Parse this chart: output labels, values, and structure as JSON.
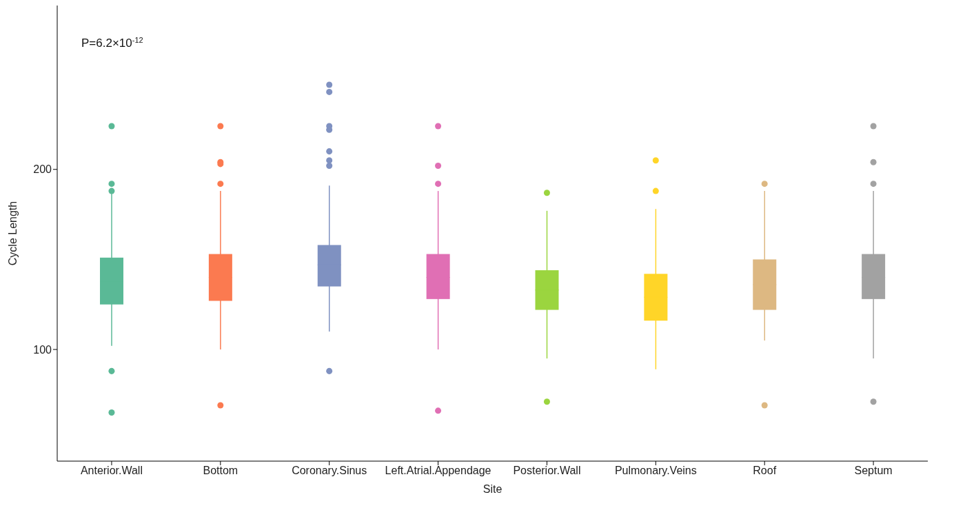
{
  "chart_data": {
    "type": "box",
    "xlabel": "Site",
    "ylabel": "Cycle Length",
    "annotations": [
      "P=6.2×10$^{-12}$"
    ],
    "categories": [
      "Anterior.Wall",
      "Bottom",
      "Coronary.Sinus",
      "Left.Atrial.Appendage",
      "Posterior.Wall",
      "Pulmonary.Veins",
      "Roof",
      "Septum"
    ],
    "colors": [
      "#5ab996",
      "#fb7a50",
      "#7f91c1",
      "#e06fb4",
      "#9bd53f",
      "#ffd528",
      "#ddb882",
      "#a2a2a2"
    ],
    "boxes": [
      {
        "low": 102,
        "q1": 125,
        "median": 138,
        "q3": 151,
        "high": 188,
        "outliers": [
          224,
          192,
          188,
          88,
          65
        ]
      },
      {
        "low": 100,
        "q1": 127,
        "median": 140,
        "q3": 153,
        "high": 188,
        "outliers": [
          224,
          204,
          203,
          192,
          69
        ]
      },
      {
        "low": 110,
        "q1": 135,
        "median": 147,
        "q3": 158,
        "high": 191,
        "outliers": [
          247,
          243,
          224,
          222,
          210,
          205,
          202,
          88
        ]
      },
      {
        "low": 100,
        "q1": 128,
        "median": 140,
        "q3": 153,
        "high": 188,
        "outliers": [
          224,
          202,
          192,
          66
        ]
      },
      {
        "low": 95,
        "q1": 122,
        "median": 133,
        "q3": 144,
        "high": 177,
        "outliers": [
          187,
          71
        ]
      },
      {
        "low": 89,
        "q1": 116,
        "median": 129,
        "q3": 142,
        "high": 178,
        "outliers": [
          205,
          188
        ]
      },
      {
        "low": 105,
        "q1": 122,
        "median": 136,
        "q3": 150,
        "high": 188,
        "outliers": [
          192,
          69
        ]
      },
      {
        "low": 95,
        "q1": 128,
        "median": 140,
        "q3": 153,
        "high": 188,
        "outliers": [
          224,
          204,
          192,
          71
        ]
      }
    ],
    "ylim": [
      38,
      291
    ],
    "yticks": [
      100,
      200
    ]
  }
}
